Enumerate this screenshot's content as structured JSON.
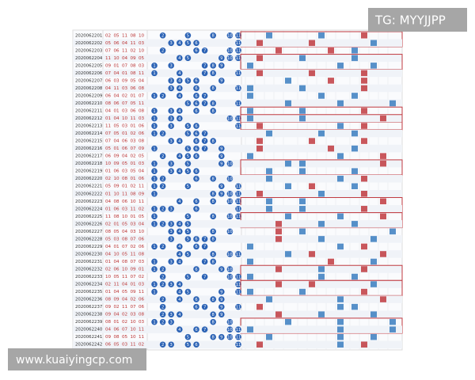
{
  "header": {
    "tag": "TG: MYYJJPP"
  },
  "footer": {
    "site": "www.kuaiyingcp.com"
  },
  "rows": [
    {
      "issue": "2020062201",
      "numbers": [
        "02",
        "05",
        "11",
        "08",
        "10"
      ],
      "balls": [
        2,
        5,
        11,
        8,
        10
      ]
    },
    {
      "issue": "2020062202",
      "numbers": [
        "05",
        "06",
        "04",
        "11",
        "03"
      ],
      "balls": [
        5,
        6,
        4,
        11,
        3
      ]
    },
    {
      "issue": "2020062203",
      "numbers": [
        "07",
        "06",
        "11",
        "02",
        "10"
      ],
      "balls": [
        7,
        6,
        11,
        2,
        10
      ]
    },
    {
      "issue": "2020062204",
      "numbers": [
        "11",
        "10",
        "04",
        "09",
        "05"
      ],
      "balls": [
        11,
        10,
        4,
        9,
        5
      ]
    },
    {
      "issue": "2020062205",
      "numbers": [
        "09",
        "01",
        "07",
        "08",
        "03"
      ],
      "balls": [
        9,
        1,
        7,
        8,
        3
      ]
    },
    {
      "issue": "2020062206",
      "numbers": [
        "07",
        "04",
        "01",
        "08",
        "11"
      ],
      "balls": [
        7,
        4,
        1,
        8,
        11
      ]
    },
    {
      "issue": "2020062207",
      "numbers": [
        "06",
        "03",
        "09",
        "05",
        "04"
      ],
      "balls": [
        6,
        3,
        9,
        5,
        4
      ]
    },
    {
      "issue": "2020062208",
      "numbers": [
        "04",
        "11",
        "03",
        "06",
        "08"
      ],
      "balls": [
        4,
        11,
        3,
        6,
        8
      ]
    },
    {
      "issue": "2020062209",
      "numbers": [
        "06",
        "04",
        "02",
        "01",
        "07"
      ],
      "balls": [
        6,
        4,
        2,
        1,
        7
      ]
    },
    {
      "issue": "2020062210",
      "numbers": [
        "08",
        "06",
        "07",
        "05",
        "11"
      ],
      "balls": [
        8,
        6,
        7,
        5,
        11
      ]
    },
    {
      "issue": "2020062211",
      "numbers": [
        "04",
        "01",
        "03",
        "06",
        "08"
      ],
      "balls": [
        4,
        1,
        3,
        6,
        8
      ]
    },
    {
      "issue": "2020062212",
      "numbers": [
        "01",
        "04",
        "10",
        "11",
        "03"
      ],
      "balls": [
        1,
        4,
        10,
        11,
        3
      ]
    },
    {
      "issue": "2020062213",
      "numbers": [
        "11",
        "05",
        "03",
        "01",
        "06"
      ],
      "balls": [
        11,
        5,
        3,
        1,
        6
      ]
    },
    {
      "issue": "2020062214",
      "numbers": [
        "07",
        "05",
        "01",
        "02",
        "06"
      ],
      "balls": [
        7,
        5,
        1,
        2,
        6
      ]
    },
    {
      "issue": "2020062215",
      "numbers": [
        "07",
        "04",
        "06",
        "03",
        "08"
      ],
      "balls": [
        7,
        4,
        6,
        3,
        8
      ]
    },
    {
      "issue": "2020062216",
      "numbers": [
        "05",
        "01",
        "06",
        "07",
        "09"
      ],
      "balls": [
        5,
        1,
        6,
        7,
        9
      ]
    },
    {
      "issue": "2020062217",
      "numbers": [
        "06",
        "09",
        "04",
        "02",
        "05"
      ],
      "balls": [
        6,
        9,
        4,
        2,
        5
      ]
    },
    {
      "issue": "2020062218",
      "numbers": [
        "10",
        "09",
        "05",
        "01",
        "03"
      ],
      "balls": [
        10,
        9,
        5,
        1,
        3
      ]
    },
    {
      "issue": "2020062219",
      "numbers": [
        "01",
        "06",
        "03",
        "05",
        "04"
      ],
      "balls": [
        1,
        6,
        3,
        5,
        4
      ]
    },
    {
      "issue": "2020062220",
      "numbers": [
        "02",
        "10",
        "08",
        "01",
        "06"
      ],
      "balls": [
        2,
        10,
        8,
        1,
        6
      ]
    },
    {
      "issue": "2020062221",
      "numbers": [
        "05",
        "09",
        "01",
        "02",
        "11"
      ],
      "balls": [
        5,
        9,
        1,
        2,
        11
      ]
    },
    {
      "issue": "2020062222",
      "numbers": [
        "01",
        "10",
        "11",
        "08",
        "09"
      ],
      "balls": [
        1,
        10,
        11,
        8,
        9
      ]
    },
    {
      "issue": "2020062223",
      "numbers": [
        "04",
        "08",
        "06",
        "10",
        "11"
      ],
      "balls": [
        4,
        8,
        6,
        10,
        11
      ]
    },
    {
      "issue": "2020062224",
      "numbers": [
        "01",
        "06",
        "03",
        "11",
        "02"
      ],
      "balls": [
        1,
        6,
        3,
        11,
        2
      ]
    },
    {
      "issue": "2020062225",
      "numbers": [
        "11",
        "08",
        "10",
        "01",
        "05"
      ],
      "balls": [
        11,
        8,
        10,
        1,
        5
      ]
    },
    {
      "issue": "2020062226",
      "numbers": [
        "02",
        "01",
        "05",
        "03",
        "04"
      ],
      "balls": [
        2,
        1,
        5,
        3,
        4
      ]
    },
    {
      "issue": "2020062227",
      "numbers": [
        "08",
        "05",
        "04",
        "03",
        "10"
      ],
      "balls": [
        8,
        5,
        4,
        3,
        10
      ]
    },
    {
      "issue": "2020062228",
      "numbers": [
        "05",
        "03",
        "08",
        "07",
        "06"
      ],
      "balls": [
        5,
        3,
        8,
        7,
        6
      ]
    },
    {
      "issue": "2020062229",
      "numbers": [
        "04",
        "01",
        "07",
        "02",
        "06"
      ],
      "balls": [
        4,
        1,
        7,
        2,
        6
      ]
    },
    {
      "issue": "2020062230",
      "numbers": [
        "04",
        "10",
        "05",
        "11",
        "08"
      ],
      "balls": [
        4,
        10,
        5,
        11,
        8
      ]
    },
    {
      "issue": "2020062231",
      "numbers": [
        "01",
        "04",
        "08",
        "07",
        "03"
      ],
      "balls": [
        1,
        4,
        8,
        7,
        3
      ]
    },
    {
      "issue": "2020062232",
      "numbers": [
        "02",
        "06",
        "10",
        "09",
        "01"
      ],
      "balls": [
        2,
        6,
        10,
        9,
        1
      ]
    },
    {
      "issue": "2020062233",
      "numbers": [
        "10",
        "05",
        "11",
        "07",
        "02"
      ],
      "balls": [
        10,
        5,
        11,
        7,
        2
      ]
    },
    {
      "issue": "2020062234",
      "numbers": [
        "02",
        "11",
        "04",
        "01",
        "03"
      ],
      "balls": [
        2,
        11,
        4,
        1,
        3
      ]
    },
    {
      "issue": "2020062235",
      "numbers": [
        "01",
        "04",
        "05",
        "09",
        "11"
      ],
      "balls": [
        1,
        4,
        5,
        9,
        11
      ]
    },
    {
      "issue": "2020062236",
      "numbers": [
        "08",
        "09",
        "04",
        "02",
        "06"
      ],
      "balls": [
        8,
        9,
        4,
        2,
        6
      ]
    },
    {
      "issue": "2020062237",
      "numbers": [
        "09",
        "02",
        "11",
        "07",
        "06"
      ],
      "balls": [
        9,
        2,
        11,
        7,
        6
      ]
    },
    {
      "issue": "2020062238",
      "numbers": [
        "09",
        "04",
        "02",
        "03",
        "08"
      ],
      "balls": [
        9,
        4,
        2,
        3,
        8
      ]
    },
    {
      "issue": "2020062239",
      "numbers": [
        "08",
        "01",
        "02",
        "10",
        "03"
      ],
      "balls": [
        8,
        1,
        2,
        10,
        3
      ]
    },
    {
      "issue": "2020062240",
      "numbers": [
        "04",
        "06",
        "07",
        "10",
        "11"
      ],
      "balls": [
        4,
        6,
        7,
        10,
        11
      ]
    },
    {
      "issue": "2020062241",
      "numbers": [
        "09",
        "08",
        "05",
        "10",
        "11"
      ],
      "balls": [
        9,
        8,
        5,
        10,
        11
      ]
    },
    {
      "issue": "2020062242",
      "numbers": [
        "06",
        "05",
        "03",
        "11",
        "02"
      ],
      "balls": [
        6,
        5,
        3,
        11,
        2
      ]
    }
  ]
}
